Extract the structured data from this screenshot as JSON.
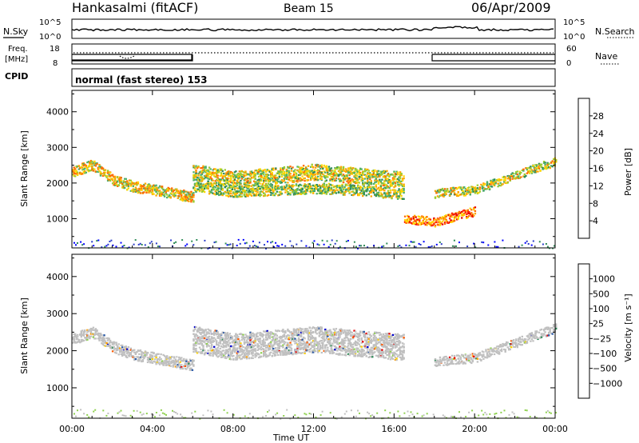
{
  "header": {
    "station": "Hankasalmi (fitACF)",
    "beam": "Beam 15",
    "date": "06/Apr/2009"
  },
  "status_panels": {
    "left_labels": [
      "N.Sky",
      "Freq.",
      "[MHz]",
      "CPID"
    ],
    "right_labels": [
      "N.Search",
      "Nave"
    ],
    "noise_ticks": [
      "10^5",
      "10^0"
    ],
    "freq_ticks": [
      "18",
      "8"
    ],
    "nave_ticks": [
      "60",
      "0"
    ],
    "cpid_text": "normal (fast stereo) 153"
  },
  "colors": {
    "axis": "#000000",
    "data_gray": "#c0c0c0",
    "power_scale": [
      "#0000ff",
      "#2a3cc8",
      "#2e8b57",
      "#4fb06a",
      "#9acd32",
      "#ffd700",
      "#ffa500",
      "#ff6a00",
      "#ff2400",
      "#e60000"
    ],
    "velocity_scale": [
      "#e60000",
      "#ff5a00",
      "#ff9f00",
      "#ffd200",
      "#c8c8c8",
      "#c8c8c8",
      "#8fd14f",
      "#2e8b57",
      "#2a5aa8",
      "#0000cc"
    ]
  },
  "chart_data": [
    {
      "type": "heatmap",
      "name": "power",
      "ylabel": "Slant Range [km]",
      "ylim": [
        180,
        4600
      ],
      "yticks": [
        1000,
        2000,
        3000,
        4000
      ],
      "xlim_hours": [
        0,
        24
      ],
      "colorbar_label": "Power [dB]",
      "colorbar_ticks": [
        "4",
        "8",
        "12",
        "16",
        "20",
        "24",
        "28"
      ],
      "bands": [
        {
          "from": 0,
          "to": 6.0,
          "range": [
            [
              0,
              2300
            ],
            [
              1,
              2500
            ],
            [
              2,
              2100
            ],
            [
              3,
              1900
            ],
            [
              4,
              1800
            ],
            [
              5,
              1700
            ],
            [
              6,
              1600
            ]
          ],
          "width": 300,
          "level": 0.55
        },
        {
          "from": 6.0,
          "to": 16.5,
          "range": [
            [
              6,
              2300
            ],
            [
              8,
              2100
            ],
            [
              10,
              2200
            ],
            [
              12,
              2300
            ],
            [
              14,
              2200
            ],
            [
              16,
              2100
            ]
          ],
          "width": 450,
          "level": 0.5
        },
        {
          "from": 6.0,
          "to": 16.5,
          "range": [
            [
              6,
              1900
            ],
            [
              8,
              1750
            ],
            [
              10,
              1800
            ],
            [
              12,
              1850
            ],
            [
              14,
              1800
            ],
            [
              16,
              1700
            ]
          ],
          "width": 300,
          "level": 0.45
        },
        {
          "from": 18.0,
          "to": 24.0,
          "range": [
            [
              18,
              1700
            ],
            [
              20,
              1800
            ],
            [
              22,
              2200
            ],
            [
              24,
              2600
            ]
          ],
          "width": 250,
          "level": 0.5
        },
        {
          "from": 16.5,
          "to": 20.0,
          "range": [
            [
              16.5,
              1000
            ],
            [
              18,
              900
            ],
            [
              20,
              1200
            ]
          ],
          "width": 250,
          "level": 0.75
        }
      ]
    },
    {
      "type": "heatmap",
      "name": "velocity",
      "ylabel": "Slant Range [km]",
      "ylim": [
        180,
        4600
      ],
      "yticks": [
        1000,
        2000,
        3000,
        4000
      ],
      "xlim_hours": [
        0,
        24
      ],
      "colorbar_label": "Velocity [m s⁻¹]",
      "colorbar_ticks": [
        "1000",
        "500",
        "100",
        "25",
        "−25",
        "−100",
        "−500",
        "−1000"
      ],
      "bands": [
        {
          "from": 0,
          "to": 6.0,
          "range": [
            [
              0,
              2300
            ],
            [
              1,
              2500
            ],
            [
              2,
              2100
            ],
            [
              3,
              1900
            ],
            [
              4,
              1800
            ],
            [
              5,
              1700
            ],
            [
              6,
              1600
            ]
          ],
          "width": 300,
          "level": 0.5
        },
        {
          "from": 6.0,
          "to": 16.5,
          "range": [
            [
              6,
              2300
            ],
            [
              8,
              2100
            ],
            [
              10,
              2200
            ],
            [
              12,
              2300
            ],
            [
              14,
              2200
            ],
            [
              16,
              2100
            ]
          ],
          "width": 700,
          "level": 0.5
        },
        {
          "from": 18.0,
          "to": 24.0,
          "range": [
            [
              18,
              1700
            ],
            [
              20,
              1800
            ],
            [
              22,
              2200
            ],
            [
              24,
              2600
            ]
          ],
          "width": 250,
          "level": 0.5
        }
      ]
    }
  ],
  "x_axis": {
    "ticks": [
      "00:00",
      "04:00",
      "08:00",
      "12:00",
      "16:00",
      "20:00",
      "00:00"
    ],
    "label": "Time UT"
  }
}
